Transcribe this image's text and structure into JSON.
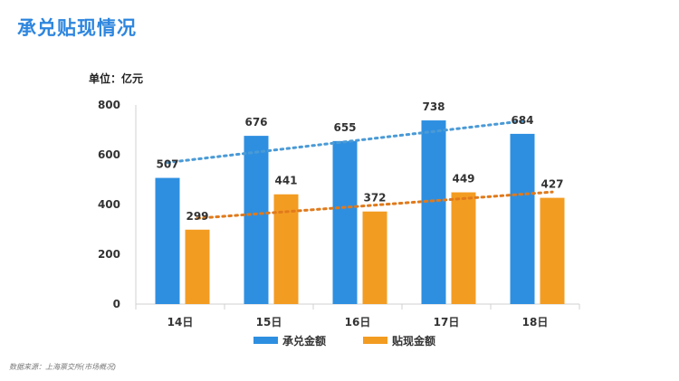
{
  "page": {
    "title": "承兑贴现情况",
    "unit": "单位：亿元",
    "source": "数据来源：上海票交所(市场概况)"
  },
  "colors": {
    "title": "#2e86de",
    "acceptance": "#2e8fe0",
    "discount": "#f39c22",
    "acceptance_trend": "#4a9ad6",
    "discount_trend": "#e07a1c"
  },
  "chart_data": {
    "type": "bar",
    "categories": [
      "14日",
      "15日",
      "16日",
      "17日",
      "18日"
    ],
    "series": [
      {
        "name": "承兑金额",
        "values": [
          507,
          676,
          655,
          738,
          684
        ],
        "color": "#2e8fe0"
      },
      {
        "name": "贴现金额",
        "values": [
          299,
          441,
          372,
          449,
          427
        ],
        "color": "#f39c22"
      }
    ],
    "trendlines": [
      {
        "series": "承兑金额",
        "type": "linear",
        "style": "dotted"
      },
      {
        "series": "贴现金额",
        "type": "linear",
        "style": "dotted"
      }
    ],
    "yticks": [
      0,
      200,
      400,
      600,
      800
    ],
    "ylim": [
      0,
      800
    ],
    "title": "",
    "xlabel": "",
    "ylabel": "",
    "grid": false,
    "legend": "bottom"
  }
}
